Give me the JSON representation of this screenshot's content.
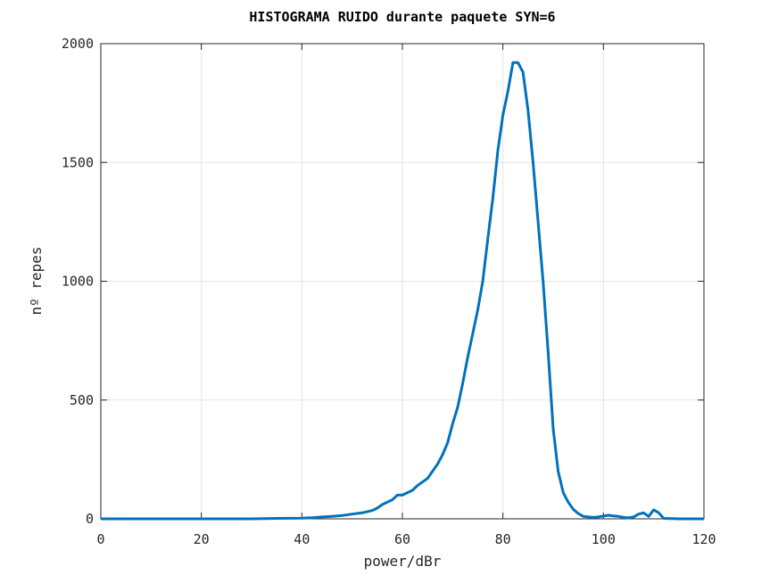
{
  "chart_data": {
    "type": "line",
    "title": "HISTOGRAMA RUIDO durante paquete SYN=6",
    "xlabel": "power/dBr",
    "ylabel": "nº repes",
    "xlim": [
      0,
      120
    ],
    "ylim": [
      0,
      2000
    ],
    "x_ticks": [
      "0",
      "20",
      "40",
      "60",
      "80",
      "100",
      "120"
    ],
    "y_ticks": [
      "0",
      "500",
      "1000",
      "1500",
      "2000"
    ],
    "grid": true,
    "series": [
      {
        "color": "#0072BD",
        "x": [
          0,
          10,
          20,
          30,
          35,
          40,
          42,
          44,
          46,
          48,
          50,
          52,
          54,
          55,
          56,
          57,
          58,
          59,
          60,
          61,
          62,
          63,
          64,
          65,
          66,
          67,
          68,
          69,
          70,
          71,
          72,
          73,
          74,
          75,
          76,
          77,
          78,
          79,
          80,
          81,
          82,
          83,
          84,
          85,
          86,
          87,
          88,
          89,
          90,
          91,
          92,
          93,
          94,
          95,
          96,
          97,
          98,
          99,
          100,
          101,
          102,
          103,
          104,
          105,
          106,
          107,
          108,
          109,
          110,
          111,
          112,
          115,
          120
        ],
        "y": [
          0,
          0,
          0,
          0,
          2,
          3,
          5,
          8,
          10,
          14,
          20,
          25,
          35,
          45,
          60,
          70,
          80,
          100,
          100,
          110,
          120,
          140,
          155,
          170,
          200,
          230,
          270,
          320,
          400,
          470,
          570,
          680,
          780,
          880,
          1000,
          1180,
          1350,
          1550,
          1700,
          1800,
          1920,
          1920,
          1880,
          1720,
          1500,
          1250,
          1000,
          700,
          380,
          200,
          110,
          70,
          40,
          22,
          10,
          8,
          6,
          8,
          12,
          15,
          12,
          10,
          6,
          4,
          8,
          20,
          25,
          10,
          38,
          25,
          2,
          0,
          0
        ]
      }
    ]
  }
}
